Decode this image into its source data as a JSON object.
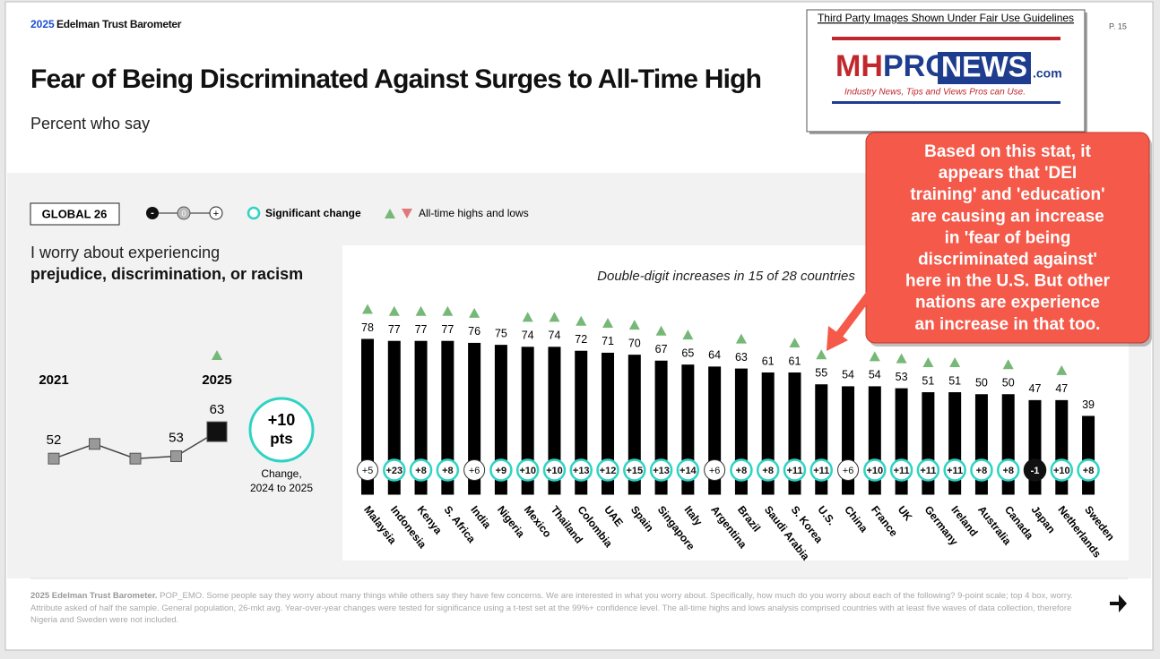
{
  "header": {
    "brand_year": "2025",
    "brand": "Edelman Trust Barometer",
    "page": "P. 15",
    "title": "Fear of Being Discriminated Against Surges to All-Time High",
    "subtitle": "Percent who say"
  },
  "watermark": {
    "notice": "Third Party Images Shown Under Fair Use Guidelines",
    "logo_mh": "MH",
    "logo_pro": "PRO",
    "logo_news": "NEWS",
    "logo_com": ".com",
    "tagline": "Industry News, Tips and Views Pros can Use."
  },
  "legend": {
    "global": "GLOBAL 26",
    "scale_icons": [
      "-",
      "0",
      "+"
    ],
    "significant": "Significant change",
    "highs": "All-time highs and lows"
  },
  "question": {
    "line1": "I worry about experiencing",
    "line2": "prejudice, discrimination, or racism"
  },
  "change": {
    "value": "+10",
    "unit": "pts",
    "label1": "Change,",
    "label2": "2024 to 2025"
  },
  "chart_data": [
    {
      "type": "line",
      "categories": [
        "2021",
        null,
        null,
        null,
        "2025"
      ],
      "values": [
        52,
        58,
        52,
        53,
        63
      ],
      "value_labels": [
        "52",
        null,
        null,
        "53",
        "63"
      ],
      "all_time_high": [
        false,
        false,
        false,
        false,
        true
      ],
      "ylim": [
        40,
        70
      ]
    },
    {
      "type": "bar",
      "subtitle": "Double-digit increases in 15 of 28 countries",
      "categories": [
        "Malaysia",
        "Indonesia",
        "Kenya",
        "S. Africa",
        "India",
        "Nigeria",
        "Mexico",
        "Thailand",
        "Colombia",
        "UAE",
        "Spain",
        "Singapore",
        "Italy",
        "Argentina",
        "Brazil",
        "Saudi Arabia",
        "S. Korea",
        "U.S.",
        "China",
        "France",
        "UK",
        "Germany",
        "Ireland",
        "Australia",
        "Canada",
        "Japan",
        "Netherlands",
        "Sweden"
      ],
      "values": [
        78,
        77,
        77,
        77,
        76,
        75,
        74,
        74,
        72,
        71,
        70,
        67,
        65,
        64,
        63,
        61,
        61,
        55,
        54,
        54,
        53,
        51,
        51,
        50,
        50,
        47,
        47,
        39
      ],
      "changes": [
        "+5",
        "+23",
        "+8",
        "+8",
        "+6",
        "+9",
        "+10",
        "+10",
        "+13",
        "+12",
        "+15",
        "+13",
        "+14",
        "+6",
        "+8",
        "+8",
        "+11",
        "+11",
        "+6",
        "+10",
        "+11",
        "+11",
        "+11",
        "+8",
        "+8",
        "-1",
        "+10",
        "+8"
      ],
      "significant": [
        false,
        true,
        true,
        true,
        false,
        true,
        true,
        true,
        true,
        true,
        true,
        true,
        true,
        false,
        true,
        true,
        true,
        true,
        false,
        true,
        true,
        true,
        true,
        true,
        true,
        true,
        true,
        true
      ],
      "all_time_high": [
        true,
        true,
        true,
        true,
        true,
        false,
        true,
        true,
        true,
        true,
        true,
        true,
        true,
        false,
        true,
        false,
        true,
        true,
        false,
        true,
        true,
        true,
        true,
        false,
        true,
        false,
        true,
        false
      ],
      "color": "#000000",
      "ylim": [
        0,
        100
      ]
    }
  ],
  "callout": [
    "Based on this stat, it",
    "appears that 'DEI",
    "training' and 'education'",
    "are causing an increase",
    "in 'fear of being",
    "discriminated against'",
    "here in the U.S. But other",
    "nations are experience",
    "an increase in that too."
  ],
  "footer": {
    "source": "2025 Edelman Trust Barometer.",
    "text": "POP_EMO. Some people say they worry about many things while others say they have few concerns. We are interested in what you worry about. Specifically, how much do you worry about each of the following? 9-point scale; top 4 box, worry. Attribute asked of half the sample. General population, 26-mkt avg. Year-over-year changes were tested for significance using a t-test set at the 99%+ confidence level. The all-time highs and lows analysis comprised countries with at least five waves of data collection, therefore Nigeria and Sweden were not included."
  }
}
